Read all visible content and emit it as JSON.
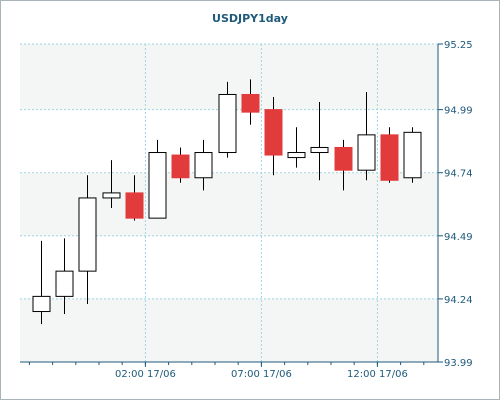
{
  "chart_data": {
    "type": "candlestick",
    "title": "USDJPY1day",
    "y_ticks": [
      "93.99",
      "94.24",
      "94.49",
      "94.74",
      "94.99",
      "95.25"
    ],
    "y_range": [
      93.99,
      95.25
    ],
    "x_ticks": [
      "02:00 17/06",
      "07:00 17/06",
      "12:00 17/06"
    ],
    "x_tick_candle_positions": [
      4.5,
      9.5,
      14.5
    ],
    "grid": true,
    "colors": {
      "background": "#f4f6f6",
      "band": "#ffffff",
      "grid": "#9fd4e0",
      "bull_fill": "#ffffff",
      "bear_fill": "#e23b3b",
      "outline": "#000000",
      "text": "#1f5a7a",
      "frame": "#aab4b8"
    },
    "candles": [
      {
        "open": 94.19,
        "high": 94.47,
        "low": 94.14,
        "close": 94.25
      },
      {
        "open": 94.25,
        "high": 94.48,
        "low": 94.18,
        "close": 94.35
      },
      {
        "open": 94.35,
        "high": 94.73,
        "low": 94.22,
        "close": 94.64
      },
      {
        "open": 94.64,
        "high": 94.79,
        "low": 94.6,
        "close": 94.66
      },
      {
        "open": 94.66,
        "high": 94.73,
        "low": 94.55,
        "close": 94.56
      },
      {
        "open": 94.56,
        "high": 94.87,
        "low": 94.56,
        "close": 94.82
      },
      {
        "open": 94.81,
        "high": 94.84,
        "low": 94.7,
        "close": 94.72
      },
      {
        "open": 94.72,
        "high": 94.87,
        "low": 94.67,
        "close": 94.82
      },
      {
        "open": 94.82,
        "high": 95.1,
        "low": 94.8,
        "close": 95.05
      },
      {
        "open": 95.05,
        "high": 95.11,
        "low": 94.93,
        "close": 94.98
      },
      {
        "open": 94.99,
        "high": 95.04,
        "low": 94.73,
        "close": 94.81
      },
      {
        "open": 94.8,
        "high": 94.92,
        "low": 94.76,
        "close": 94.82
      },
      {
        "open": 94.82,
        "high": 95.02,
        "low": 94.71,
        "close": 94.84
      },
      {
        "open": 94.84,
        "high": 94.87,
        "low": 94.67,
        "close": 94.75
      },
      {
        "open": 94.75,
        "high": 95.06,
        "low": 94.71,
        "close": 94.89
      },
      {
        "open": 94.89,
        "high": 94.92,
        "low": 94.7,
        "close": 94.71
      },
      {
        "open": 94.72,
        "high": 94.92,
        "low": 94.7,
        "close": 94.9
      }
    ]
  }
}
